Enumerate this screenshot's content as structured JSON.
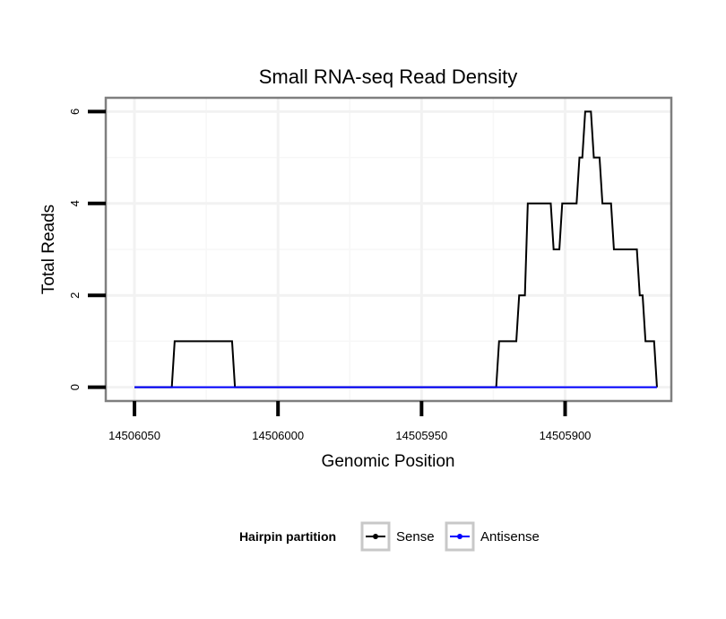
{
  "chart_data": {
    "type": "line",
    "title": "Small RNA-seq Read Density",
    "xlabel": "Genomic Position",
    "ylabel": "Total Reads",
    "x_reversed": true,
    "xlim": [
      14506060,
      14505863
    ],
    "ylim": [
      -0.3,
      6.3
    ],
    "xticks": [
      14506050,
      14506000,
      14505950,
      14505900
    ],
    "xtick_labels": [
      "14506050",
      "14506000",
      "14505950",
      "14505900"
    ],
    "yticks": [
      0,
      2,
      4,
      6
    ],
    "ytick_labels": [
      "0",
      "2",
      "4",
      "6"
    ],
    "grid": true,
    "legend": {
      "title": "Hairpin partition",
      "position": "bottom",
      "entries": [
        "Sense",
        "Antisense"
      ]
    },
    "series": [
      {
        "name": "Sense",
        "color": "#000000",
        "x": [
          14506050,
          14506037,
          14506036,
          14506016,
          14506015,
          14505924,
          14505923,
          14505917,
          14505916,
          14505914,
          14505913,
          14505905,
          14505904,
          14505902,
          14505901,
          14505900,
          14505899,
          14505896,
          14505895,
          14505894,
          14505893,
          14505891,
          14505890,
          14505888,
          14505887,
          14505884,
          14505883,
          14505875,
          14505874,
          14505873,
          14505872,
          14505869,
          14505868
        ],
        "values": [
          0,
          0,
          1,
          1,
          0,
          0,
          1,
          1,
          2,
          2,
          4,
          4,
          3,
          3,
          4,
          4,
          4,
          4,
          5,
          5,
          6,
          6,
          5,
          5,
          4,
          4,
          3,
          3,
          2,
          2,
          1,
          1,
          0
        ]
      },
      {
        "name": "Antisense",
        "color": "#0000ff",
        "x": [
          14506050,
          14505868
        ],
        "values": [
          0,
          0
        ]
      }
    ]
  }
}
